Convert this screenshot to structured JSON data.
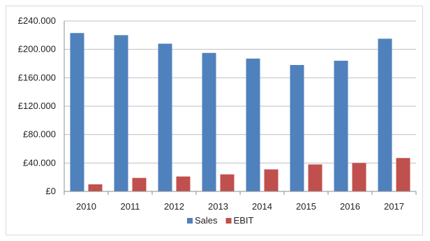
{
  "chart_data": {
    "type": "bar",
    "title": "",
    "xlabel": "",
    "ylabel": "",
    "categories": [
      "2010",
      "2011",
      "2012",
      "2013",
      "2014",
      "2015",
      "2016",
      "2017"
    ],
    "series": [
      {
        "name": "Sales",
        "color": "#4F81BD",
        "values": [
          223000,
          220000,
          208000,
          195000,
          187000,
          178000,
          184000,
          215000
        ]
      },
      {
        "name": "EBIT",
        "color": "#C0504D",
        "values": [
          10000,
          19000,
          21000,
          24000,
          31000,
          38000,
          40000,
          47000
        ]
      }
    ],
    "ylim": [
      0,
      240000
    ],
    "yticks": [
      0,
      40000,
      80000,
      120000,
      160000,
      200000,
      240000
    ],
    "ytick_labels": [
      "£0",
      "£40.000",
      "£80.000",
      "£120.000",
      "£160.000",
      "£200.000",
      "£240.000"
    ],
    "grid": true,
    "legend_position": "bottom"
  }
}
